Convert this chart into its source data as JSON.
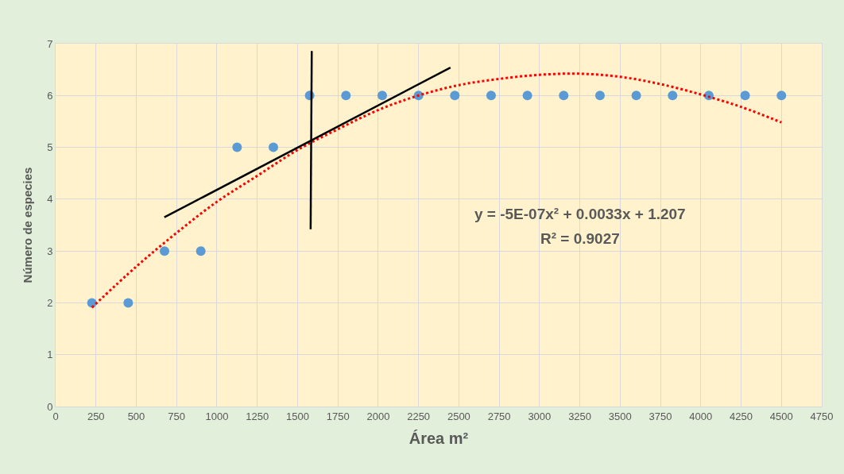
{
  "chart_data": {
    "type": "scatter",
    "xlabel": "Área m²",
    "ylabel": "Número de especies",
    "xlim": [
      0,
      4750
    ],
    "xticks": [
      0,
      250,
      500,
      750,
      1000,
      1250,
      1500,
      1750,
      2000,
      2250,
      2500,
      2750,
      3000,
      3250,
      3500,
      3750,
      4000,
      4250,
      4500,
      4750
    ],
    "ylim": [
      0,
      7
    ],
    "yticks": [
      0,
      1,
      2,
      3,
      4,
      5,
      6,
      7
    ],
    "grid": true,
    "series": [
      {
        "color": "#5b9bd5",
        "marker": "circle",
        "x": [
          225,
          450,
          675,
          900,
          1125,
          1350,
          1575,
          1800,
          2025,
          2250,
          2475,
          2700,
          2925,
          3150,
          3375,
          3600,
          3825,
          4050,
          4275,
          4500
        ],
        "values": [
          2,
          2,
          3,
          3,
          5,
          5,
          6,
          6,
          6,
          6,
          6,
          6,
          6,
          6,
          6,
          6,
          6,
          6,
          6,
          6
        ]
      },
      {
        "type": "line",
        "color": "#ff0000",
        "line_style": "dotted",
        "marker": "none",
        "x": [
          225,
          500,
          750,
          1000,
          1250,
          1500,
          1750,
          2000,
          2250,
          2500,
          2750,
          3000,
          3250,
          3500,
          3750,
          4000,
          4250,
          4500
        ],
        "values": [
          1.91,
          2.7,
          3.35,
          3.95,
          4.45,
          4.95,
          5.35,
          5.72,
          6.0,
          6.2,
          6.32,
          6.4,
          6.42,
          6.36,
          6.22,
          6.02,
          5.78,
          5.48
        ]
      },
      {
        "type": "line",
        "color": "#000000",
        "line_style": "solid",
        "marker": "none",
        "x": [
          674,
          2448
        ],
        "values": [
          3.65,
          6.54
        ]
      },
      {
        "type": "line",
        "color": "#000000",
        "line_style": "solid",
        "marker": "none",
        "x": [
          1588,
          1581
        ],
        "values": [
          6.86,
          3.42
        ]
      }
    ],
    "annotations": [
      "y = -5E-07x² + 0.0033x + 1.207",
      "R² = 0.9027"
    ]
  }
}
